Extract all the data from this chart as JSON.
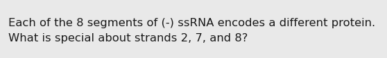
{
  "lines": [
    "Each of the 8 segments of (-) ssRNA encodes a different protein.",
    "What is special about strands 2, 7, and 8?"
  ],
  "background_color": "#e9e9e9",
  "text_color": "#1a1a1a",
  "font_size": 11.8,
  "fig_width": 5.58,
  "fig_height": 0.84,
  "dpi": 100
}
